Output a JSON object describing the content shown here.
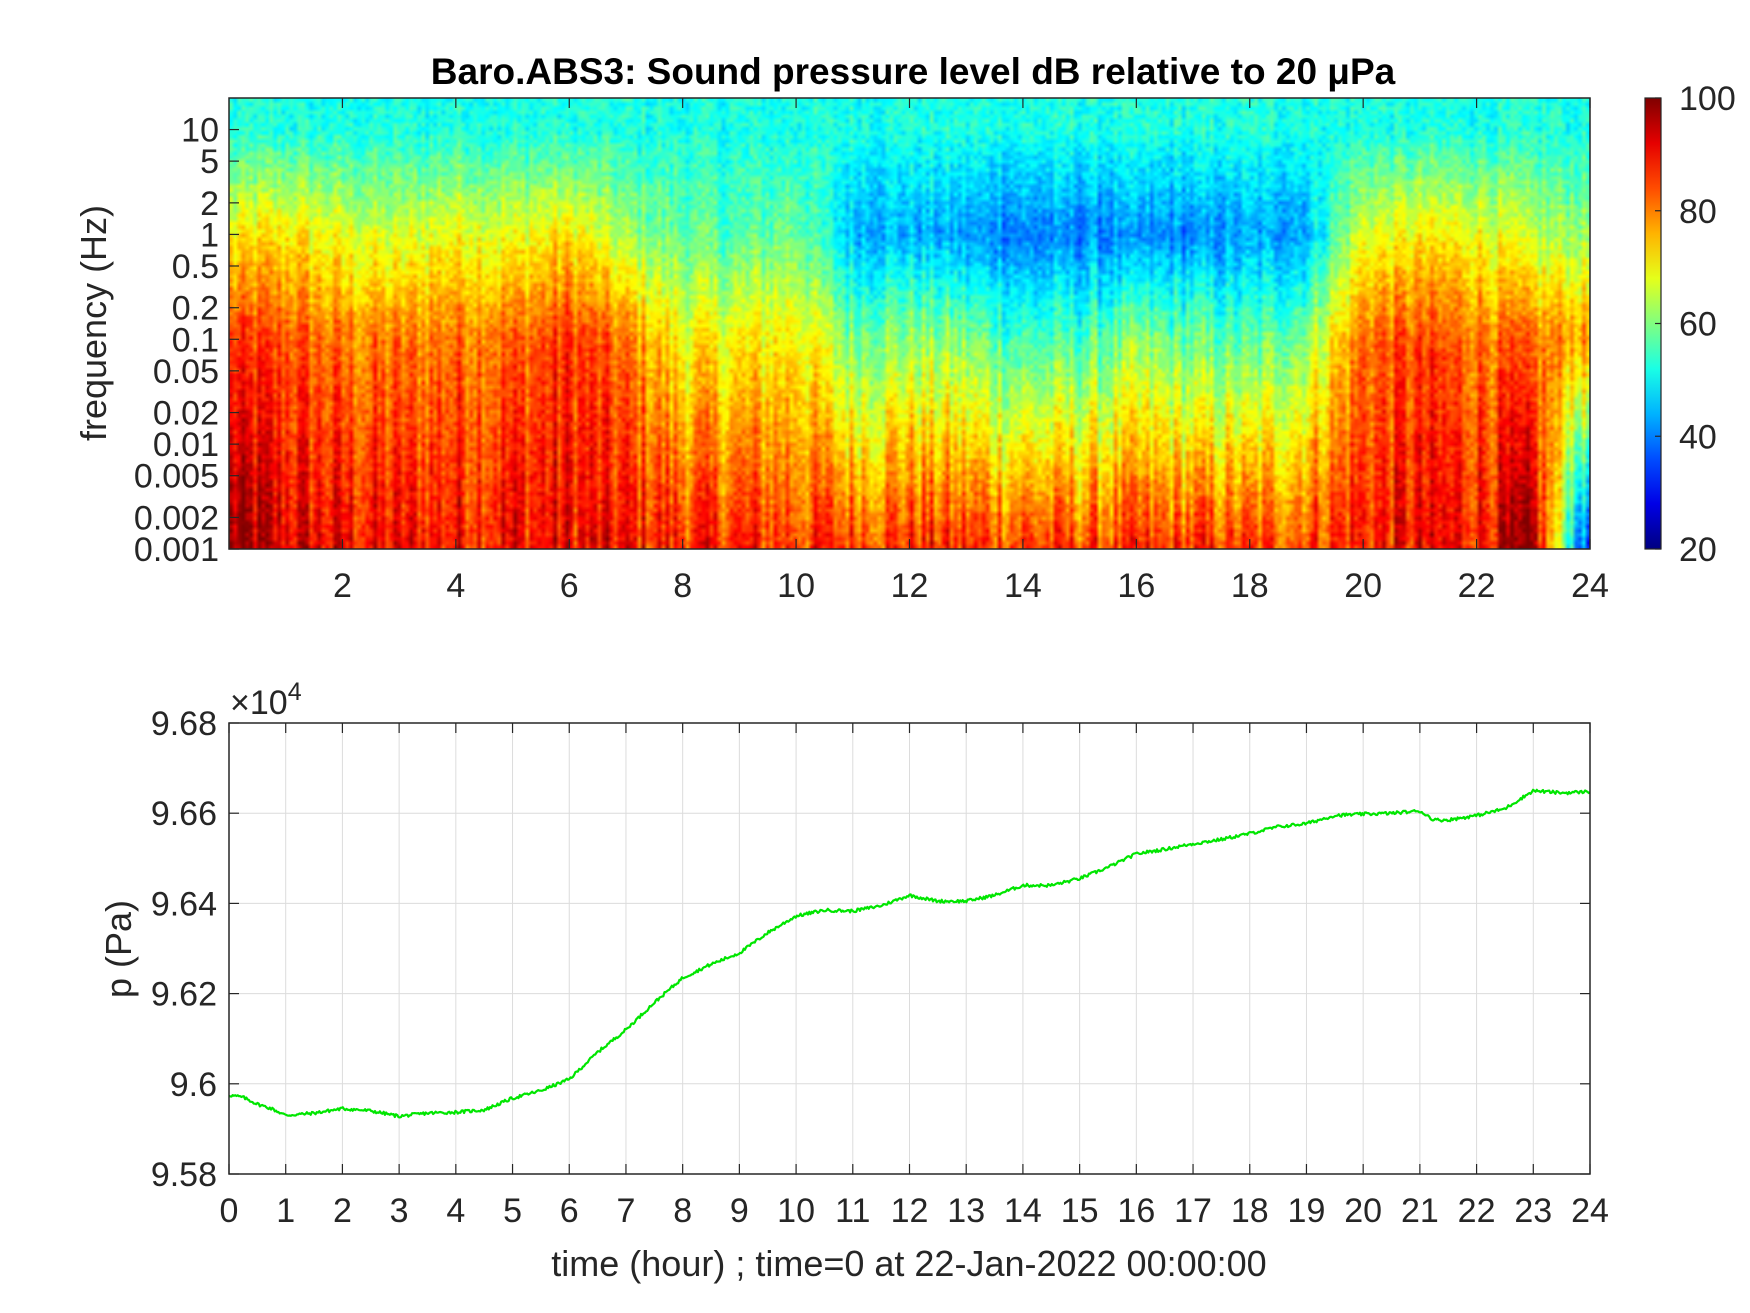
{
  "chart_data": [
    {
      "type": "heatmap",
      "title": "Baro.ABS3: Sound pressure level dB relative to 20 μPa",
      "xlabel": "",
      "ylabel": "frequency (Hz)",
      "xlim": [
        0,
        24
      ],
      "x_ticks": [
        "2",
        "4",
        "6",
        "8",
        "10",
        "12",
        "14",
        "16",
        "18",
        "20",
        "22",
        "24"
      ],
      "y_scale": "log",
      "ylim": [
        0.001,
        20
      ],
      "y_ticks": [
        "0.001",
        "0.002",
        "0.005",
        "0.01",
        "0.02",
        "0.05",
        "0.1",
        "0.2",
        "0.5",
        "1",
        "2",
        "5",
        "10"
      ],
      "colorbar": {
        "colormap": "jet",
        "range": [
          20,
          100
        ],
        "ticks": [
          "20",
          "40",
          "60",
          "80",
          "100"
        ]
      },
      "level_profile_db": {
        "description_hours": [
          0,
          1,
          2,
          3,
          4,
          5,
          6,
          7,
          8,
          9,
          10,
          11,
          12,
          13,
          14,
          15,
          16,
          17,
          18,
          19,
          20,
          21,
          22,
          23,
          24
        ],
        "at_0.001Hz": [
          98,
          92,
          90,
          89,
          90,
          90,
          90,
          89,
          88,
          87,
          86,
          86,
          87,
          86,
          86,
          85,
          85,
          86,
          85,
          86,
          88,
          89,
          90,
          96,
          30
        ],
        "at_0.1Hz": [
          85,
          84,
          80,
          80,
          82,
          82,
          86,
          80,
          70,
          70,
          72,
          60,
          62,
          60,
          55,
          56,
          60,
          58,
          56,
          62,
          82,
          84,
          82,
          80,
          78
        ],
        "at_1Hz": [
          70,
          72,
          68,
          66,
          70,
          68,
          72,
          62,
          58,
          56,
          60,
          45,
          44,
          42,
          40,
          40,
          40,
          41,
          42,
          44,
          68,
          70,
          70,
          64,
          62
        ],
        "at_10Hz": [
          52,
          52,
          52,
          52,
          52,
          52,
          52,
          52,
          52,
          52,
          52,
          52,
          52,
          52,
          52,
          52,
          52,
          52,
          52,
          52,
          52,
          52,
          52,
          52,
          52
        ]
      }
    },
    {
      "type": "line",
      "xlabel": "time (hour) ; time=0 at 22-Jan-2022 00:00:00",
      "ylabel": "p (Pa)",
      "exponent_label": "×10",
      "exponent_power": "4",
      "xlim": [
        0,
        24
      ],
      "ylim": [
        95800,
        96800
      ],
      "x_ticks": [
        "0",
        "1",
        "2",
        "3",
        "4",
        "5",
        "6",
        "7",
        "8",
        "9",
        "10",
        "11",
        "12",
        "13",
        "14",
        "15",
        "16",
        "17",
        "18",
        "19",
        "20",
        "21",
        "22",
        "23",
        "24"
      ],
      "y_ticks": [
        "9.58",
        "9.6",
        "9.62",
        "9.64",
        "9.66",
        "9.68"
      ],
      "grid": true,
      "color": "#00e600",
      "series": [
        {
          "x": [
            0,
            0.25,
            0.5,
            0.75,
            1,
            1.5,
            2,
            2.5,
            3,
            3.5,
            4,
            4.5,
            5,
            5.5,
            6,
            6.5,
            7,
            7.5,
            8,
            8.5,
            9,
            9.5,
            10,
            10.5,
            11,
            11.5,
            12,
            12.5,
            13,
            13.5,
            14,
            14.5,
            15,
            15.5,
            16,
            16.5,
            17,
            17.5,
            18,
            18.5,
            19,
            19.5,
            20,
            20.5,
            21,
            21.25,
            21.5,
            22,
            22.5,
            23,
            23.5,
            24
          ],
          "y": [
            95975,
            95970,
            95955,
            95945,
            95930,
            95935,
            95945,
            95940,
            95928,
            95935,
            95937,
            95942,
            95968,
            95985,
            96010,
            96070,
            96120,
            96180,
            96235,
            96265,
            96290,
            96335,
            96372,
            96385,
            96383,
            96395,
            96418,
            96405,
            96405,
            96418,
            96440,
            96440,
            96455,
            96480,
            96510,
            96520,
            96532,
            96542,
            96555,
            96570,
            96577,
            96595,
            96598,
            96600,
            96605,
            96585,
            96585,
            96595,
            96610,
            96650,
            96645,
            96648
          ]
        }
      ]
    }
  ]
}
